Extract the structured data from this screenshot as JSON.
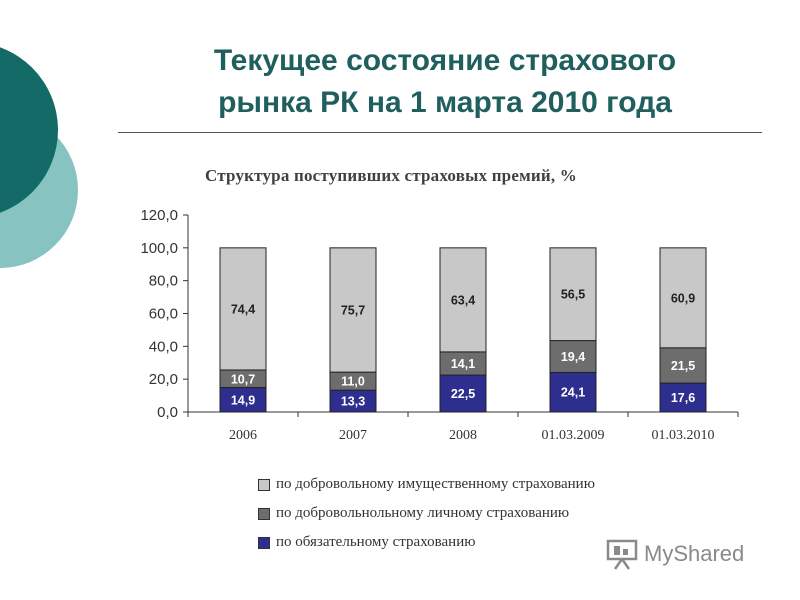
{
  "slide": {
    "title_lines": [
      "Текущее состояние страхового",
      "рынка РК на 1 марта 2010 года"
    ],
    "colors": {
      "title": "#1f5f5e",
      "deco_dark": "#136a66",
      "deco_light": "#86c3c1"
    },
    "watermark": "MyShared"
  },
  "chart_data": {
    "type": "bar",
    "stacked": true,
    "title": "Структура поступивших страховых премий,  %",
    "categories": [
      "2006",
      "2007",
      "2008",
      "01.03.2009",
      "01.03.2010"
    ],
    "series": [
      {
        "name": "по обязательному страхованию",
        "color": "#2e2e8f",
        "values": [
          14.9,
          13.3,
          22.5,
          24.1,
          17.6
        ],
        "labels": [
          "14,9",
          "13,3",
          "22,5",
          "24,1",
          "17,6"
        ]
      },
      {
        "name": "по добровольнольному личному страхованию",
        "color": "#6d6d6d",
        "values": [
          10.7,
          11.0,
          14.1,
          19.4,
          21.5
        ],
        "labels": [
          "10,7",
          "11,0",
          "14,1",
          "19,4",
          "21,5"
        ]
      },
      {
        "name": "по добровольному имущественному страхованию",
        "color": "#c8c8c8",
        "values": [
          74.4,
          75.7,
          63.4,
          56.5,
          60.9
        ],
        "labels": [
          "74,4",
          "75,7",
          "63,4",
          "56,5",
          "60,9"
        ]
      }
    ],
    "legend_order": [
      2,
      1,
      0
    ],
    "ylim": [
      0,
      120
    ],
    "yticks": [
      0,
      20,
      40,
      60,
      80,
      100,
      120
    ],
    "ytick_labels": [
      "0,0",
      "20,0",
      "40,0",
      "60,0",
      "80,0",
      "100,0",
      "120,0"
    ],
    "grid": false,
    "legend_position": "bottom"
  }
}
